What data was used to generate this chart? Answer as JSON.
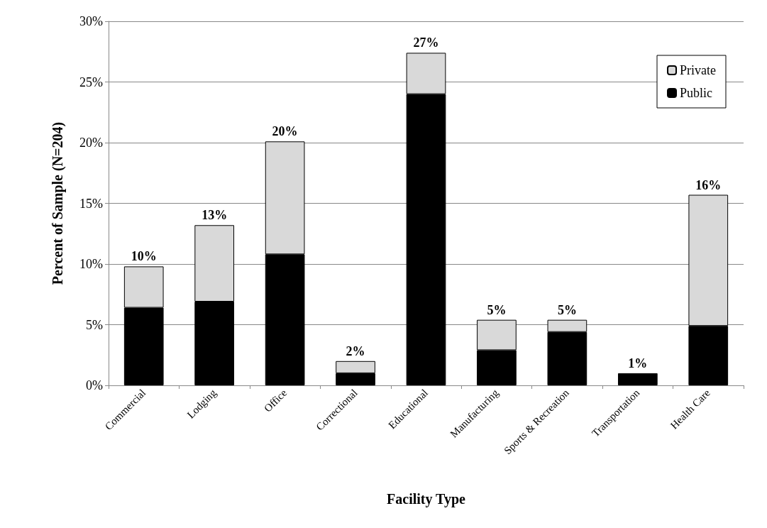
{
  "chart_data": {
    "type": "bar",
    "stacked": true,
    "xlabel": "Facility Type",
    "ylabel": "Percent of Sample (N=204)",
    "categories": [
      "Commercial",
      "Lodging",
      "Office",
      "Correctional",
      "Educational",
      "Manufacturing",
      "Sports & Recreation",
      "Transportation",
      "Health Care"
    ],
    "series": [
      {
        "name": "Public",
        "color": "#000000",
        "values": [
          6.4,
          6.9,
          10.8,
          1.0,
          24.0,
          2.9,
          4.4,
          1.0,
          4.9
        ]
      },
      {
        "name": "Private",
        "color": "#d9d9d9",
        "values": [
          3.4,
          6.3,
          9.3,
          1.0,
          3.4,
          2.5,
          1.0,
          0,
          10.8
        ]
      }
    ],
    "totals": [
      "10%",
      "13%",
      "20%",
      "2%",
      "27%",
      "5%",
      "5%",
      "1%",
      "16%"
    ],
    "ylim": [
      0,
      30
    ],
    "yticks": [
      {
        "value": 0,
        "label": "0%"
      },
      {
        "value": 5,
        "label": "5%"
      },
      {
        "value": 10,
        "label": "10%"
      },
      {
        "value": 15,
        "label": "15%"
      },
      {
        "value": 20,
        "label": "20%"
      },
      {
        "value": 25,
        "label": "25%"
      },
      {
        "value": 30,
        "label": "30%"
      }
    ],
    "grid": "y",
    "legend": "top right"
  }
}
